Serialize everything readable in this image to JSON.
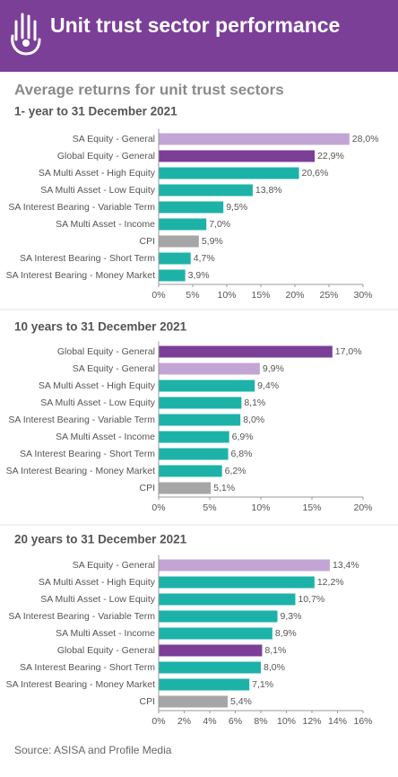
{
  "header": {
    "title": "Unit trust sector performance",
    "subtitle": "Average returns for unit trust sectors"
  },
  "source": "Source:  ASISA and Profile Media",
  "chart_data": [
    {
      "type": "bar",
      "orientation": "horizontal",
      "title": "1- year to 31 December 2021",
      "categories": [
        "SA Equity - General",
        "Global Equity - General",
        "SA Multi Asset - High Equity",
        "SA Multi Asset - Low Equity",
        "SA Interest Bearing - Variable Term",
        "SA Multi Asset - Income",
        "CPI",
        "SA Interest Bearing - Short Term",
        "SA Interest Bearing - Money Market"
      ],
      "values": [
        28.0,
        22.9,
        20.6,
        13.8,
        9.5,
        7.0,
        5.9,
        4.7,
        3.9
      ],
      "value_labels": [
        "28,0%",
        "22,9%",
        "20,6%",
        "13,8%",
        "9,5%",
        "7,0%",
        "5,9%",
        "4,7%",
        "3,9%"
      ],
      "colors": [
        "#c3a5d5",
        "#7b3f98",
        "#1db2a8",
        "#1db2a8",
        "#1db2a8",
        "#1db2a8",
        "#a6a6a6",
        "#1db2a8",
        "#1db2a8"
      ],
      "xlim": [
        0,
        30
      ],
      "xticks": [
        {
          "value": 0,
          "label": "0%"
        },
        {
          "value": 5,
          "label": "5%"
        },
        {
          "value": 10,
          "label": "10%"
        },
        {
          "value": 15,
          "label": "15%"
        },
        {
          "value": 20,
          "label": "20%"
        },
        {
          "value": 25,
          "label": "25%"
        },
        {
          "value": 30,
          "label": "30%"
        }
      ],
      "grid": false
    },
    {
      "type": "bar",
      "orientation": "horizontal",
      "title": "10 years to 31 December 2021",
      "categories": [
        "Global Equity - General",
        "SA Equity - General",
        "SA Multi Asset - High Equity",
        "SA Multi Asset - Low Equity",
        "SA Interest Bearing - Variable Term",
        "SA Multi Asset - Income",
        "SA Interest Bearing - Short Term",
        "SA Interest Bearing - Money Market",
        "CPI"
      ],
      "values": [
        17.0,
        9.9,
        9.4,
        8.1,
        8.0,
        6.9,
        6.8,
        6.2,
        5.1
      ],
      "value_labels": [
        "17,0%",
        "9,9%",
        "9,4%",
        "8,1%",
        "8,0%",
        "6,9%",
        "6,8%",
        "6,2%",
        "5,1%"
      ],
      "colors": [
        "#7b3f98",
        "#c3a5d5",
        "#1db2a8",
        "#1db2a8",
        "#1db2a8",
        "#1db2a8",
        "#1db2a8",
        "#1db2a8",
        "#a6a6a6"
      ],
      "xlim": [
        0,
        20
      ],
      "xticks": [
        {
          "value": 0,
          "label": "0%"
        },
        {
          "value": 5,
          "label": "5%"
        },
        {
          "value": 10,
          "label": "10%"
        },
        {
          "value": 15,
          "label": "15%"
        },
        {
          "value": 20,
          "label": "20%"
        }
      ],
      "grid": false
    },
    {
      "type": "bar",
      "orientation": "horizontal",
      "title": "20 years to 31 December 2021",
      "categories": [
        "SA Equity - General",
        "SA Multi Asset - High Equity",
        "SA Multi Asset - Low Equity",
        "SA Interest Bearing - Variable Term",
        "SA Multi Asset - Income",
        "Global Equity - General",
        "SA Interest Bearing - Short Term",
        "SA Interest Bearing - Money Market",
        "CPI"
      ],
      "values": [
        13.4,
        12.2,
        10.7,
        9.3,
        8.9,
        8.1,
        8.0,
        7.1,
        5.4
      ],
      "value_labels": [
        "13,4%",
        "12,2%",
        "10,7%",
        "9,3%",
        "8,9%",
        "8,1%",
        "8,0%",
        "7,1%",
        "5,4%"
      ],
      "colors": [
        "#c3a5d5",
        "#1db2a8",
        "#1db2a8",
        "#1db2a8",
        "#1db2a8",
        "#7b3f98",
        "#1db2a8",
        "#1db2a8",
        "#a6a6a6"
      ],
      "xlim": [
        0,
        16
      ],
      "xticks": [
        {
          "value": 0,
          "label": "0%"
        },
        {
          "value": 2,
          "label": "2%"
        },
        {
          "value": 4,
          "label": "4%"
        },
        {
          "value": 6,
          "label": "6%"
        },
        {
          "value": 8,
          "label": "8%"
        },
        {
          "value": 10,
          "label": "10%"
        },
        {
          "value": 12,
          "label": "12%"
        },
        {
          "value": 14,
          "label": "14%"
        },
        {
          "value": 16,
          "label": "16%"
        }
      ],
      "grid": false
    }
  ]
}
